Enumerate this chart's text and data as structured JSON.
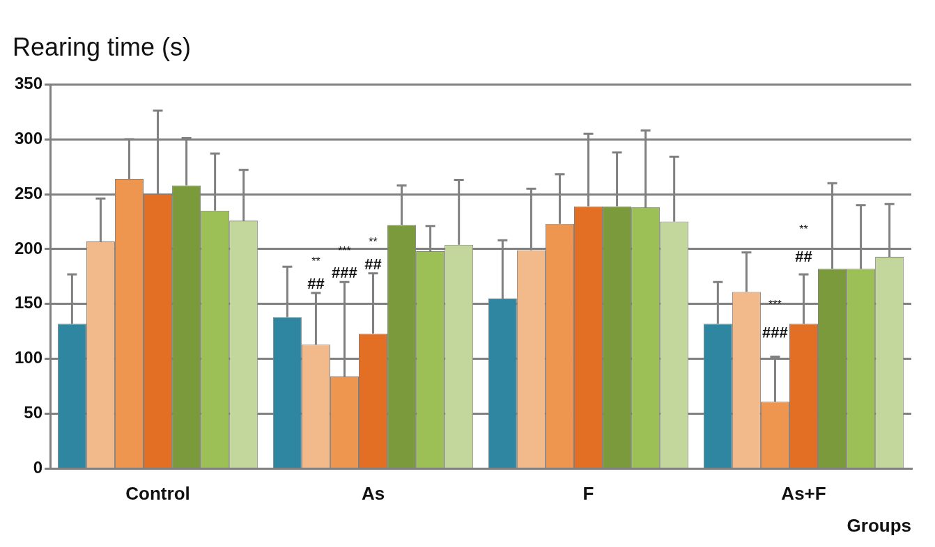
{
  "chart_data": {
    "type": "bar",
    "title": "Rearing time (s)",
    "xlabel": "Groups",
    "categories": [
      "Control",
      "As",
      "F",
      "As+F"
    ],
    "series": [
      {
        "color": "#2e86a0",
        "values": [
          132,
          138,
          155,
          132
        ],
        "errors": [
          45,
          46,
          53,
          38
        ]
      },
      {
        "color": "#f2b98a",
        "values": [
          207,
          113,
          199,
          161
        ],
        "errors": [
          39,
          47,
          56,
          36
        ]
      },
      {
        "color": "#ee9650",
        "values": [
          264,
          84,
          223,
          61
        ],
        "errors": [
          36,
          86,
          45,
          41
        ]
      },
      {
        "color": "#e26f24",
        "values": [
          250,
          123,
          239,
          132
        ],
        "errors": [
          76,
          55,
          66,
          45
        ]
      },
      {
        "color": "#7a9a3c",
        "values": [
          258,
          222,
          239,
          182
        ],
        "errors": [
          43,
          36,
          49,
          78
        ]
      },
      {
        "color": "#9cbf56",
        "values": [
          235,
          198,
          238,
          182
        ],
        "errors": [
          52,
          23,
          70,
          58
        ]
      },
      {
        "color": "#c3d69b",
        "values": [
          226,
          204,
          225,
          193
        ],
        "errors": [
          46,
          59,
          59,
          48
        ]
      }
    ],
    "annotations": [
      "**",
      "##",
      "***",
      "###",
      "**",
      "##",
      "***",
      "###",
      "**",
      "##"
    ],
    "ylim": [
      0,
      350
    ],
    "yticks": [
      0,
      50,
      100,
      150,
      200,
      250,
      300,
      350
    ],
    "grid": "y",
    "legend": false
  }
}
